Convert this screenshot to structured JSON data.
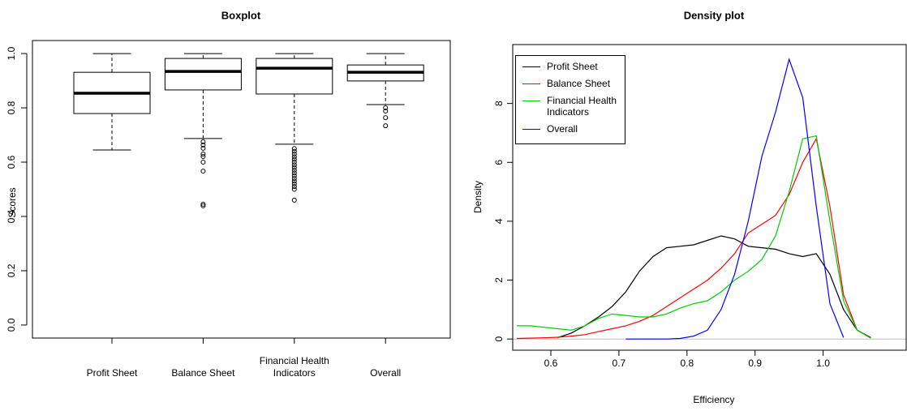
{
  "chart_data": [
    {
      "type": "boxplot",
      "title": "Boxplot",
      "ylabel": "Scores",
      "categories": [
        "Profit Sheet",
        "Balance Sheet",
        "Financial Health Indicators",
        "Overall"
      ],
      "whisker_low": [
        0.645,
        0.687,
        0.666,
        0.812
      ],
      "q1": [
        0.779,
        0.866,
        0.851,
        0.899
      ],
      "median": [
        0.854,
        0.934,
        0.946,
        0.931
      ],
      "q3": [
        0.931,
        0.982,
        0.982,
        0.958
      ],
      "whisker_high": [
        1.0,
        1.0,
        1.0,
        1.0
      ],
      "outliers": [
        [],
        [
          0.675,
          0.663,
          0.651,
          0.63,
          0.621,
          0.6,
          0.567,
          0.445,
          0.439
        ],
        [
          0.65,
          0.64,
          0.63,
          0.62,
          0.61,
          0.6,
          0.59,
          0.58,
          0.57,
          0.56,
          0.55,
          0.54,
          0.53,
          0.52,
          0.51,
          0.5,
          0.46
        ],
        [
          0.8,
          0.788,
          0.764,
          0.734
        ]
      ],
      "color": "#000000",
      "ylim": [
        -0.048,
        1.048
      ],
      "yticks": [
        {
          "value": 0,
          "label": "0.0"
        },
        0.2,
        0.4,
        0.6,
        0.8,
        {
          "value": 1,
          "label": "1.0"
        }
      ]
    },
    {
      "type": "line",
      "title": "Density plot",
      "xlabel": "Efficiency",
      "ylabel": "Density",
      "x": [
        0.55,
        0.57,
        0.59,
        0.61,
        0.63,
        0.65,
        0.67,
        0.69,
        0.71,
        0.73,
        0.75,
        0.77,
        0.79,
        0.81,
        0.83,
        0.85,
        0.87,
        0.89,
        0.91,
        0.93,
        0.95,
        0.97,
        0.99,
        1.01,
        1.03,
        1.05,
        1.07
      ],
      "series": [
        {
          "name": "Profit Sheet",
          "color": "#000000",
          "values": [
            null,
            null,
            null,
            0.05,
            0.2,
            0.45,
            0.75,
            1.1,
            1.6,
            2.3,
            2.8,
            3.1,
            3.15,
            3.2,
            3.35,
            3.5,
            3.4,
            3.15,
            3.1,
            3.05,
            2.9,
            2.8,
            2.9,
            2.2,
            1.0,
            0.3,
            0.05
          ]
        },
        {
          "name": "Balance Sheet",
          "color": "#ff0000",
          "values": [
            0.02,
            0.03,
            0.04,
            0.06,
            0.1,
            0.15,
            0.25,
            0.35,
            0.45,
            0.6,
            0.8,
            1.1,
            1.4,
            1.7,
            2.0,
            2.4,
            2.9,
            3.6,
            3.9,
            4.2,
            4.9,
            6.0,
            6.8,
            4.5,
            1.5,
            0.3,
            0.03
          ]
        },
        {
          "name": "Financial Health Indicators",
          "color": "#00cd00",
          "values": [
            0.45,
            0.45,
            0.4,
            0.35,
            0.3,
            0.45,
            0.7,
            0.85,
            0.8,
            0.75,
            0.75,
            0.85,
            1.05,
            1.2,
            1.3,
            1.6,
            2.0,
            2.3,
            2.7,
            3.5,
            5.0,
            6.8,
            6.9,
            4.0,
            1.3,
            0.3,
            0.03
          ]
        },
        {
          "name": "Overall",
          "color": "#0000ff",
          "values": [
            null,
            null,
            null,
            null,
            null,
            null,
            null,
            null,
            0,
            0,
            0,
            0,
            0.02,
            0.1,
            0.3,
            1.0,
            2.2,
            4.0,
            6.2,
            7.7,
            9.5,
            8.2,
            4.5,
            1.2,
            0.05,
            null,
            null
          ]
        }
      ],
      "legend": "top-left",
      "xlim": [
        0.544,
        1.122
      ],
      "xticks": [
        0.6,
        0.7,
        0.8,
        0.9,
        {
          "value": 1,
          "label": "1.0"
        }
      ],
      "ylim": [
        -0.38,
        10.0
      ],
      "yticks": [
        0,
        2,
        4,
        6,
        8
      ]
    }
  ]
}
